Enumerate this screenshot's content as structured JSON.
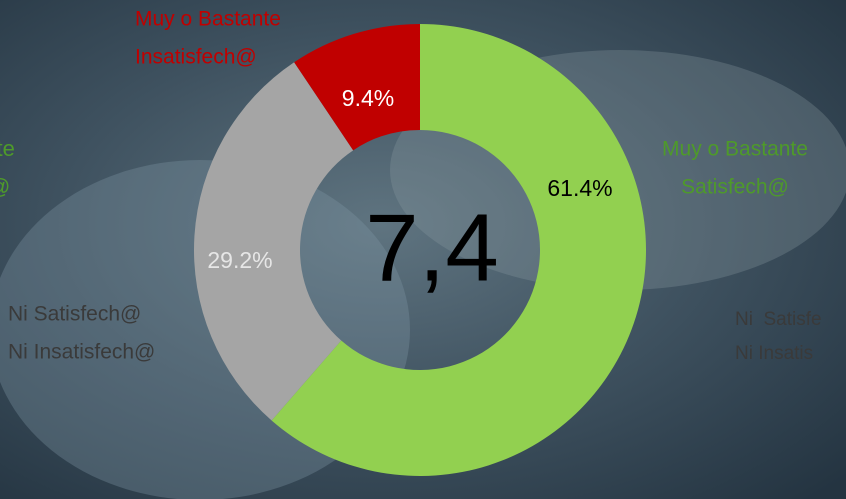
{
  "chart_data": {
    "type": "donut",
    "categories": [
      [
        "Muy o Bastante",
        "Satisfech@"
      ],
      [
        "Ni  Satisfech@",
        "Ni Insatisfech@"
      ],
      [
        "Muy o Bastante",
        "Insatisfech@"
      ]
    ],
    "values": [
      61.4,
      29.2,
      9.4
    ],
    "value_labels": [
      "61.4%",
      "29.2%",
      "9.4%"
    ],
    "colors": [
      "#92d050",
      "#a5a5a5",
      "#c00000"
    ],
    "label_colors": [
      "#4e9a2a",
      "#3a3a3a",
      "#c00000"
    ],
    "value_label_colors": [
      "#000000",
      "#e6e6e6",
      "#ffffff"
    ],
    "center_label": "7,4",
    "cropped_labels": [
      [
        "ante",
        "@"
      ],
      [
        "Ni  Satisfe",
        "Ni Insatis"
      ]
    ]
  }
}
